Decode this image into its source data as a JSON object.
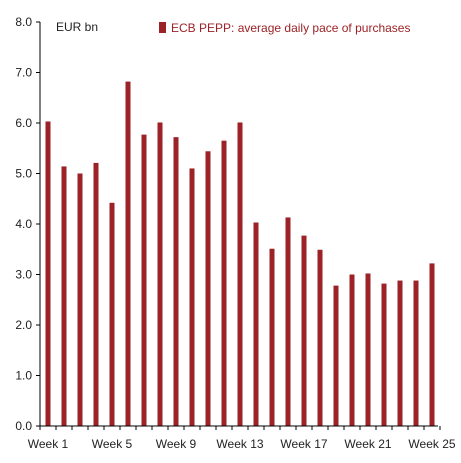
{
  "chart_data": {
    "type": "bar",
    "unit_label": "EUR bn",
    "legend": {
      "entries": [
        "ECB PEPP: average daily pace of purchases"
      ],
      "placement": "top-right"
    },
    "series": [
      {
        "name": "ECB PEPP: average daily pace of purchases",
        "color": "#9B2226",
        "values": [
          6.03,
          5.14,
          5.0,
          5.21,
          4.42,
          6.82,
          5.77,
          6.01,
          5.72,
          5.1,
          5.44,
          5.65,
          6.01,
          4.03,
          3.51,
          4.13,
          3.77,
          3.49,
          2.78,
          3.0,
          3.02,
          2.82,
          2.88,
          2.88,
          3.22
        ]
      }
    ],
    "categories": [
      "Week 1",
      "Week 2",
      "Week 3",
      "Week 4",
      "Week 5",
      "Week 6",
      "Week 7",
      "Week 8",
      "Week 9",
      "Week 10",
      "Week 11",
      "Week 12",
      "Week 13",
      "Week 14",
      "Week 15",
      "Week 16",
      "Week 17",
      "Week 18",
      "Week 19",
      "Week 20",
      "Week 21",
      "Week 22",
      "Week 23",
      "Week 24",
      "Week 25"
    ],
    "x_tick_labels": [
      "Week 1",
      "Week 5",
      "Week 9",
      "Week 13",
      "Week 17",
      "Week 21",
      "Week 25"
    ],
    "y_tick_labels": [
      "0.0",
      "1.0",
      "2.0",
      "3.0",
      "4.0",
      "5.0",
      "6.0",
      "7.0",
      "8.0"
    ],
    "ylim": [
      0,
      8
    ],
    "grid": false
  }
}
